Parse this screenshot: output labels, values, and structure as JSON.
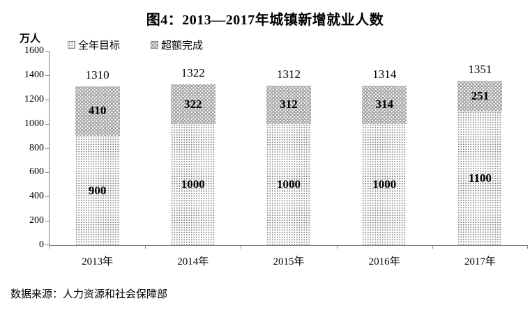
{
  "title": "图4：2013—2017年城镇新增就业人数",
  "y_axis_unit": "万人",
  "legend": [
    {
      "label": "全年目标",
      "pattern": "gray-dots-on-white"
    },
    {
      "label": "超额完成",
      "pattern": "white-dots-on-gray"
    }
  ],
  "source": "数据来源：人力资源和社会保障部",
  "colors": {
    "text": "#000000",
    "axis": "#808080",
    "exceeded_fill": "#a6a6a6",
    "target_fill": "#ffffff",
    "target_dot": "#808080",
    "exceeded_dot": "#ffffff"
  },
  "chart_data": {
    "type": "bar",
    "stacked": true,
    "title": "图4：2013—2017年城镇新增就业人数",
    "ylabel": "万人",
    "xlabel": "",
    "categories": [
      "2013年",
      "2014年",
      "2015年",
      "2016年",
      "2017年"
    ],
    "series": [
      {
        "name": "全年目标",
        "values": [
          900,
          1000,
          1000,
          1000,
          1100
        ]
      },
      {
        "name": "超额完成",
        "values": [
          410,
          322,
          312,
          314,
          251
        ]
      }
    ],
    "totals": [
      1310,
      1322,
      1312,
      1314,
      1351
    ],
    "ylim": [
      0,
      1600
    ],
    "yticks": [
      0,
      200,
      400,
      600,
      800,
      1000,
      1200,
      1400,
      1600
    ],
    "grid": false,
    "legend_position": "top-left"
  }
}
